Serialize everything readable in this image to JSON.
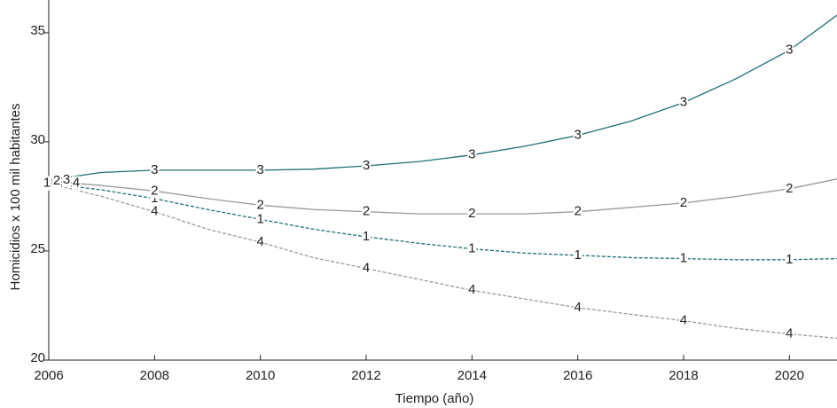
{
  "chart_data": {
    "type": "line",
    "x_label": "Tiempo (año)",
    "y_label": "Homicidios x 100 mil habitantes",
    "x": [
      2006,
      2007,
      2008,
      2009,
      2010,
      2011,
      2012,
      2013,
      2014,
      2015,
      2016,
      2017,
      2018,
      2019,
      2020,
      2020.9
    ],
    "series": [
      {
        "name": "1",
        "color": "#1f6f73",
        "dashed": true,
        "values": [
          28.1,
          27.8,
          27.4,
          26.9,
          26.45,
          26.0,
          25.65,
          25.35,
          25.1,
          24.9,
          24.8,
          24.7,
          24.65,
          24.6,
          24.6,
          24.65
        ]
      },
      {
        "name": "2",
        "color": "#9a9a9a",
        "dashed": false,
        "values": [
          28.2,
          28.0,
          27.75,
          27.4,
          27.1,
          26.9,
          26.8,
          26.7,
          26.7,
          26.7,
          26.8,
          27.0,
          27.2,
          27.5,
          27.85,
          28.3
        ]
      },
      {
        "name": "3",
        "color": "#1f6f73",
        "dashed": false,
        "values": [
          28.25,
          28.6,
          28.7,
          28.7,
          28.7,
          28.75,
          28.9,
          29.1,
          29.4,
          29.8,
          30.3,
          30.95,
          31.8,
          32.9,
          34.2,
          35.8
        ]
      },
      {
        "name": "4",
        "color": "#9a9a9a",
        "dashed": true,
        "values": [
          28.1,
          27.5,
          26.8,
          26.0,
          25.4,
          24.7,
          24.2,
          23.7,
          23.2,
          22.8,
          22.4,
          22.1,
          21.8,
          21.45,
          21.2,
          21.0
        ]
      }
    ],
    "xlim": [
      2006,
      2020.9
    ],
    "ylim": [
      20,
      36.5
    ],
    "xticks": [
      2006,
      2008,
      2010,
      2012,
      2014,
      2016,
      2018,
      2020
    ],
    "yticks": [
      20,
      25,
      30,
      35
    ]
  }
}
